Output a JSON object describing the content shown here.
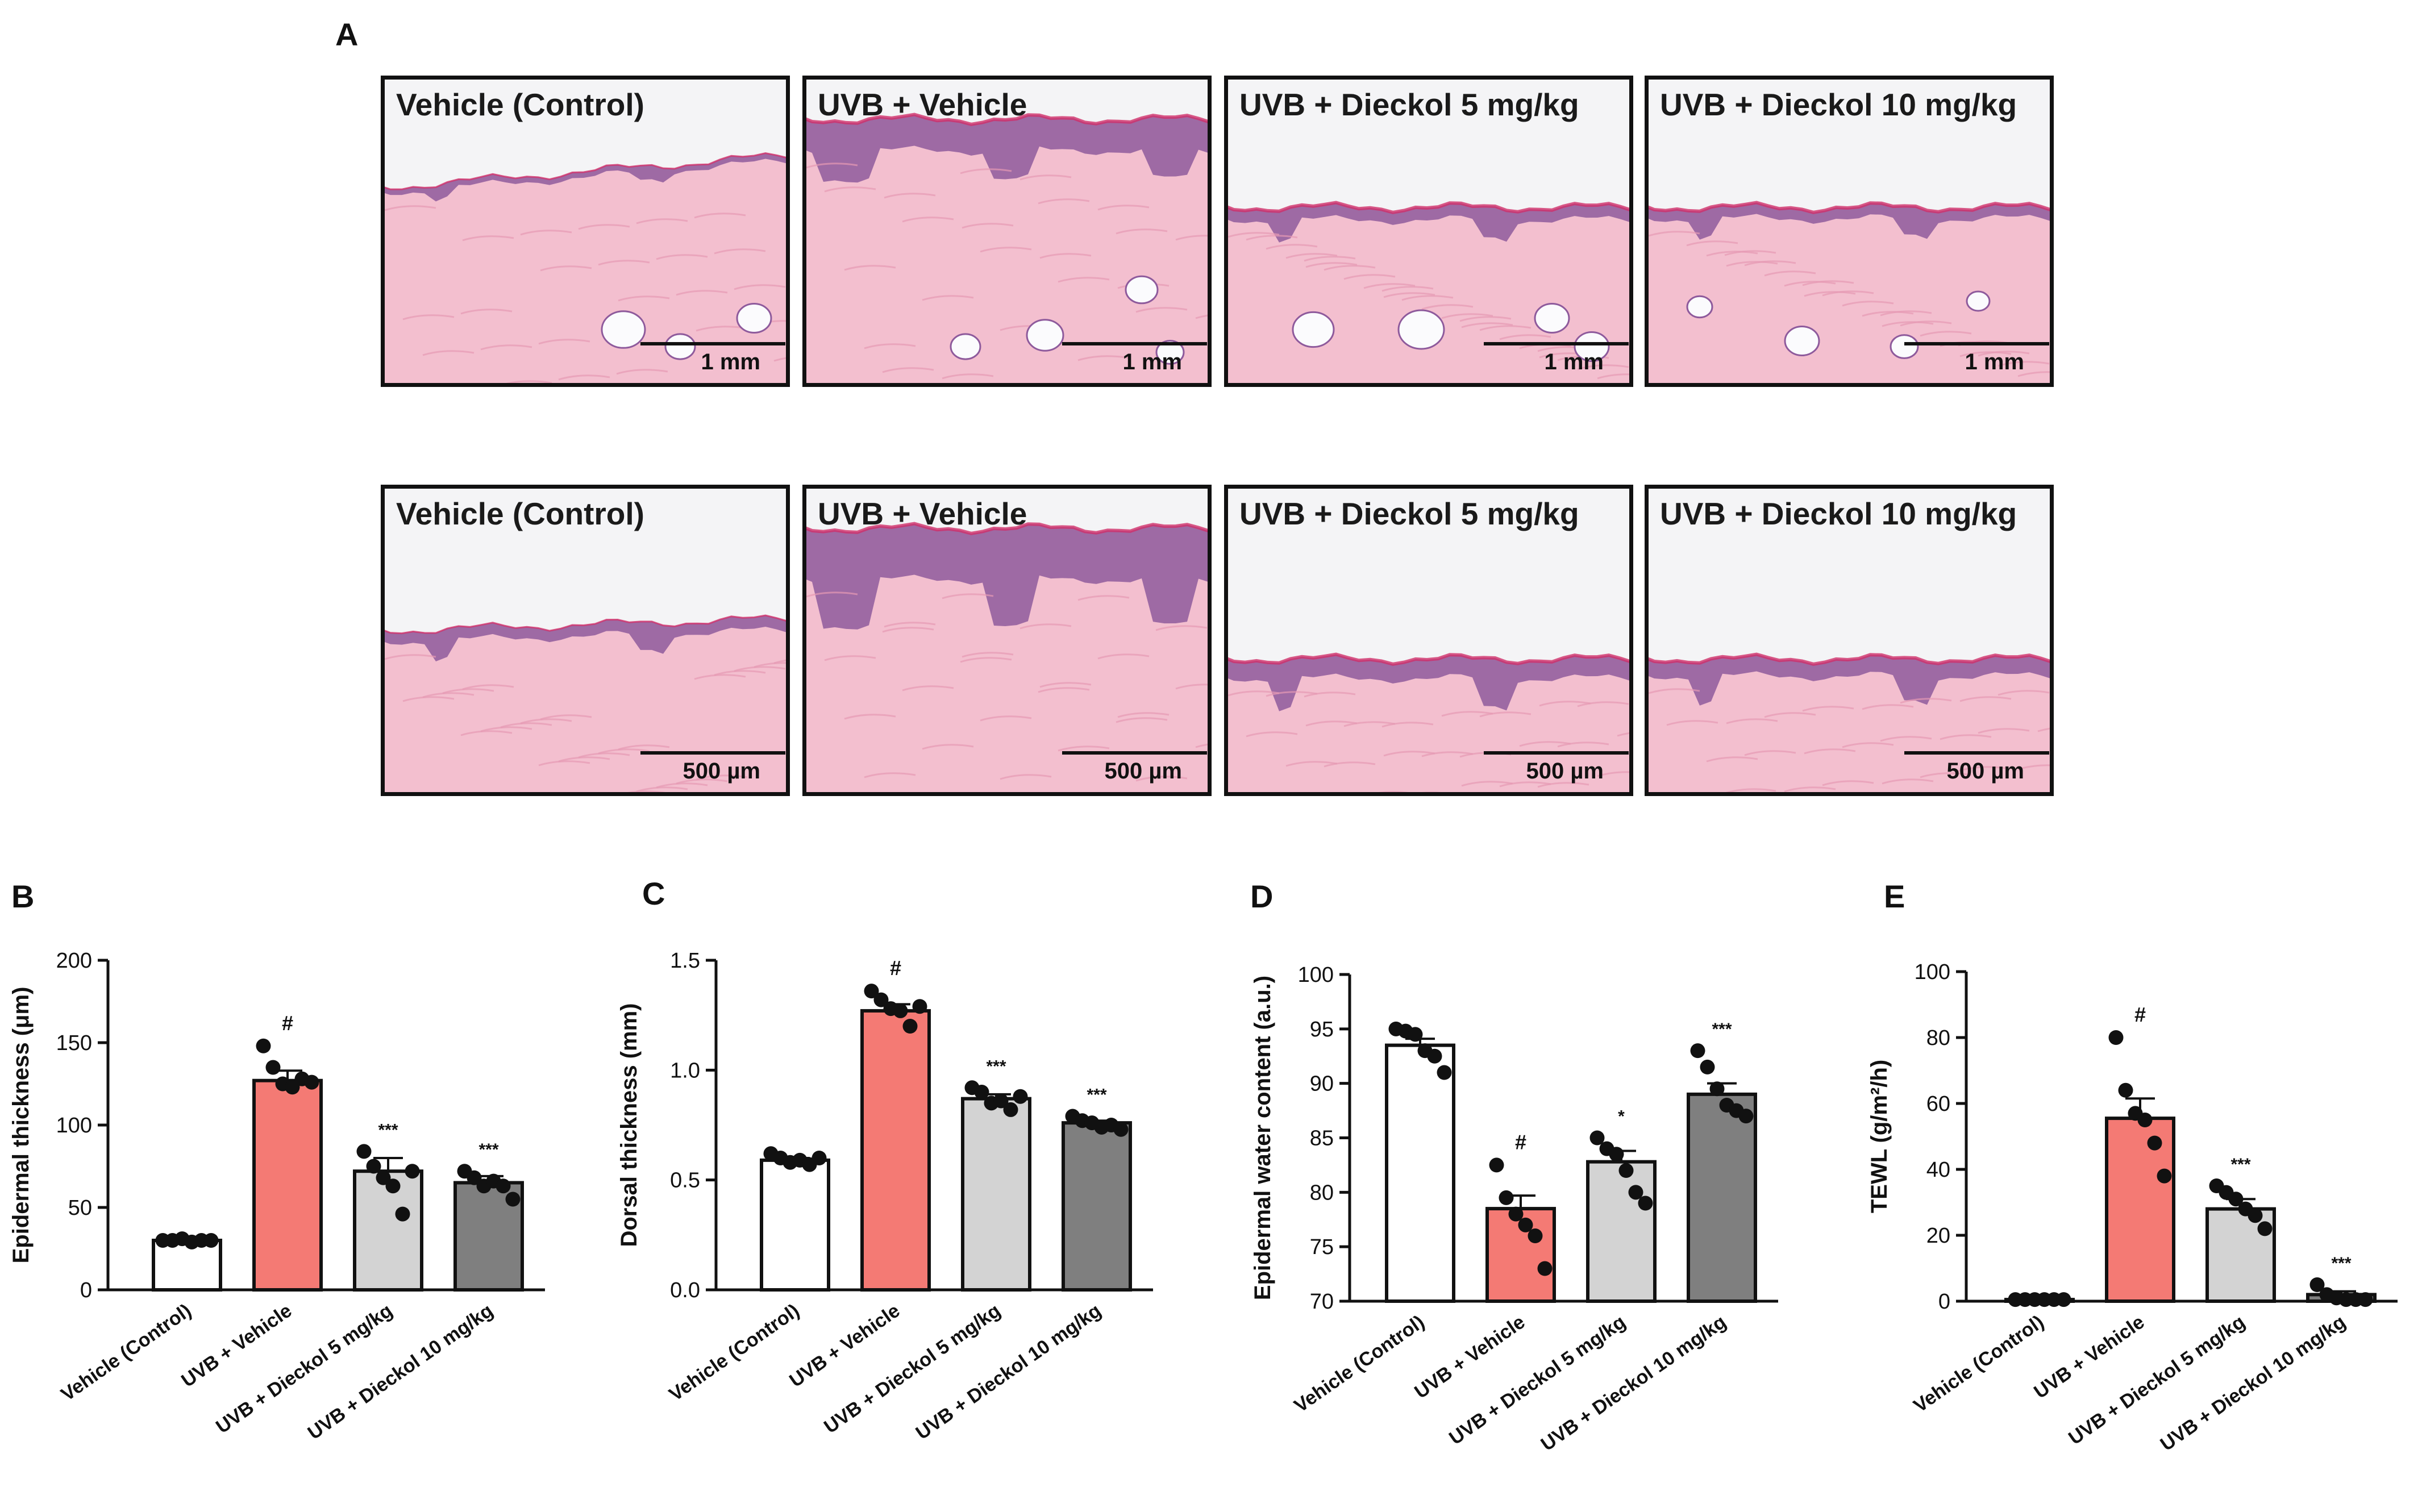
{
  "panel_a": {
    "letter": "A",
    "rows": [
      {
        "scale": "1 mm",
        "images": [
          {
            "label": "Vehicle (Control)",
            "treatment": "control"
          },
          {
            "label": "UVB + Vehicle",
            "treatment": "uvb"
          },
          {
            "label": "UVB + Dieckol 5 mg/kg",
            "treatment": "d5"
          },
          {
            "label": "UVB + Dieckol 10 mg/kg",
            "treatment": "d10"
          }
        ]
      },
      {
        "scale": "500 µm",
        "images": [
          {
            "label": "Vehicle (Control)",
            "treatment": "control"
          },
          {
            "label": "UVB + Vehicle",
            "treatment": "uvb"
          },
          {
            "label": "UVB + Dieckol 5 mg/kg",
            "treatment": "d5"
          },
          {
            "label": "UVB + Dieckol 10 mg/kg",
            "treatment": "d10"
          }
        ]
      }
    ]
  },
  "colors": {
    "control": "#ffffff",
    "uvb": "#f47a74",
    "d5": "#d3d3d3",
    "d10": "#7f7f7f",
    "tissue": "#f3bfcf",
    "epidermis": "#8e5a9c",
    "background_slide": "#f4f4f6"
  },
  "chart_data": [
    {
      "panel": "B",
      "type": "bar",
      "categories": [
        "Vehicle (Control)",
        "UVB + Vehicle",
        "UVB + Dieckol 5 mg/kg",
        "UVB + Dieckol 10 mg/kg"
      ],
      "values": [
        30,
        127,
        72,
        65
      ],
      "errors": [
        1,
        6,
        8,
        4
      ],
      "points": [
        [
          30,
          30,
          31,
          29,
          30,
          30
        ],
        [
          148,
          135,
          125,
          123,
          128,
          126
        ],
        [
          84,
          75,
          68,
          63,
          46,
          72
        ],
        [
          72,
          68,
          63,
          66,
          63,
          55
        ]
      ],
      "annotations": [
        "",
        "#",
        "***",
        "***"
      ],
      "ylabel": "Epidermal  thickness (μm)",
      "ylim": [
        0,
        200
      ],
      "yticks": [
        0,
        50,
        100,
        150,
        200
      ]
    },
    {
      "panel": "C",
      "type": "bar",
      "categories": [
        "Vehicle (Control)",
        "UVB + Vehicle",
        "UVB + Dieckol 5 mg/kg",
        "UVB + Dieckol 10 mg/kg"
      ],
      "values": [
        0.59,
        1.27,
        0.87,
        0.76
      ],
      "errors": [
        0.01,
        0.03,
        0.02,
        0.01
      ],
      "points": [
        [
          0.62,
          0.6,
          0.58,
          0.59,
          0.57,
          0.6
        ],
        [
          1.36,
          1.32,
          1.28,
          1.27,
          1.2,
          1.29
        ],
        [
          0.92,
          0.9,
          0.85,
          0.86,
          0.82,
          0.88
        ],
        [
          0.79,
          0.77,
          0.76,
          0.74,
          0.75,
          0.73
        ]
      ],
      "annotations": [
        "",
        "#",
        "***",
        "***"
      ],
      "ylabel": "Dorsal thickness (mm)",
      "ylim": [
        0,
        1.5
      ],
      "yticks": [
        "0.0",
        "0.5",
        "1.0",
        "1.5"
      ]
    },
    {
      "panel": "D",
      "type": "bar",
      "categories": [
        "Vehicle (Control)",
        "UVB + Vehicle",
        "UVB + Dieckol 5 mg/kg",
        "UVB + Dieckol 10 mg/kg"
      ],
      "values": [
        93.5,
        78.5,
        82.8,
        89
      ],
      "errors": [
        0.6,
        1.2,
        1.0,
        1.0
      ],
      "points": [
        [
          95,
          94.8,
          94.5,
          93,
          92.5,
          91
        ],
        [
          82.5,
          79.5,
          78,
          77,
          76,
          73
        ],
        [
          85,
          84,
          83.5,
          82,
          80,
          79
        ],
        [
          93,
          91.5,
          89.5,
          88,
          87.5,
          87
        ]
      ],
      "annotations": [
        "",
        "#",
        "*",
        "***"
      ],
      "ylabel": "Epidermal water content (a.u.)",
      "ylim": [
        70,
        100
      ],
      "yticks": [
        70,
        75,
        80,
        85,
        90,
        95,
        100
      ]
    },
    {
      "panel": "E",
      "type": "bar",
      "categories": [
        "Vehicle (Control)",
        "UVB + Vehicle",
        "UVB + Dieckol 5 mg/kg",
        "UVB + Dieckol 10 mg/kg"
      ],
      "values": [
        0.5,
        55.5,
        28,
        2
      ],
      "errors": [
        0.2,
        6,
        3,
        1
      ],
      "points": [
        [
          0.5,
          0.5,
          0.5,
          0.5,
          0.5,
          0.5
        ],
        [
          80,
          64,
          57,
          55,
          48,
          38
        ],
        [
          35,
          33,
          31,
          28,
          26,
          22
        ],
        [
          5,
          2,
          1,
          0.5,
          0.5,
          0.5
        ]
      ],
      "annotations": [
        "",
        "#",
        "***",
        "***"
      ],
      "ylabel": "TEWL (g/m²/h)",
      "ylim": [
        0,
        100
      ],
      "yticks": [
        0,
        20,
        40,
        60,
        80,
        100
      ]
    }
  ]
}
